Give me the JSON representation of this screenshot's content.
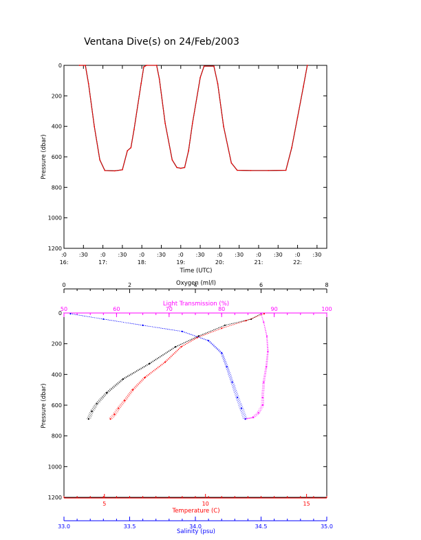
{
  "title": "Ventana Dive(s) on 24/Feb/2003",
  "colors": {
    "black": "#000000",
    "red": "#ff0000",
    "magenta": "#ff00ff",
    "blue": "#0000ff"
  },
  "chart_data": [
    {
      "type": "line",
      "xlabel": "Time (UTC)",
      "ylabel": "Pressure (dbar)",
      "ylim": [
        1200,
        0
      ],
      "yticks": [
        "0",
        "200",
        "400",
        "600",
        "800",
        "1000",
        "1200"
      ],
      "xlim_hours": [
        16.0,
        22.75
      ],
      "xticks_minor": [
        ":0",
        ":30",
        ":0",
        ":30",
        ":0",
        ":30",
        ":0",
        ":30",
        ":0",
        ":30",
        ":0",
        ":30",
        ":0",
        ":30"
      ],
      "xticks_major": [
        "16:",
        "17:",
        "18:",
        "19:",
        "20:",
        "21:",
        "22:"
      ],
      "series": [
        {
          "color": "#ff0000",
          "points": [
            [
              16.4,
              0
            ],
            [
              16.55,
              0
            ],
            [
              16.63,
              120
            ],
            [
              16.78,
              400
            ],
            [
              16.92,
              620
            ],
            [
              17.05,
              690
            ],
            [
              17.3,
              692
            ],
            [
              17.5,
              685
            ],
            [
              17.63,
              560
            ],
            [
              17.72,
              540
            ],
            [
              17.8,
              420
            ],
            [
              17.98,
              120
            ],
            [
              18.05,
              10
            ],
            [
              18.12,
              0
            ],
            [
              18.38,
              0
            ],
            [
              18.45,
              90
            ],
            [
              18.6,
              380
            ],
            [
              18.78,
              620
            ],
            [
              18.9,
              670
            ],
            [
              19.0,
              675
            ],
            [
              19.1,
              670
            ],
            [
              19.2,
              560
            ],
            [
              19.3,
              380
            ],
            [
              19.5,
              80
            ],
            [
              19.6,
              5
            ],
            [
              19.85,
              5
            ],
            [
              19.95,
              120
            ],
            [
              20.1,
              400
            ],
            [
              20.3,
              640
            ],
            [
              20.45,
              688
            ],
            [
              20.8,
              690
            ],
            [
              21.25,
              690
            ],
            [
              21.7,
              688
            ],
            [
              21.85,
              540
            ],
            [
              22.0,
              340
            ],
            [
              22.15,
              140
            ],
            [
              22.25,
              0
            ]
          ]
        }
      ]
    },
    {
      "type": "scatter",
      "ylabel": "Pressure (dbar)",
      "ylim": [
        1200,
        0
      ],
      "yticks": [
        "0",
        "200",
        "400",
        "600",
        "800",
        "1000",
        "1200"
      ],
      "axes": [
        {
          "label": "Oxygen (ml/l)",
          "color": "#000000",
          "range": [
            0,
            8
          ],
          "ticks": [
            "0",
            "2",
            "4",
            "6",
            "8"
          ],
          "position": "top"
        },
        {
          "label": "Light Transmission (%)",
          "color": "#ff00ff",
          "range": [
            50,
            100
          ],
          "ticks": [
            "50",
            "60",
            "70",
            "80",
            "90",
            "100"
          ],
          "position": "top"
        },
        {
          "label": "Temperature (C)",
          "color": "#ff0000",
          "range": [
            3.0,
            16.0
          ],
          "ticks": [
            "5",
            "10",
            "15"
          ],
          "position": "bottom"
        },
        {
          "label": "Salinity (psu)",
          "color": "#0000ff",
          "range": [
            33.0,
            35.0
          ],
          "ticks": [
            "33.0",
            "33.5",
            "34.0",
            "34.5",
            "35.0"
          ],
          "position": "bottom"
        }
      ],
      "series": [
        {
          "axis": 0,
          "color": "#000000",
          "points": [
            [
              6.0,
              5
            ],
            [
              5.7,
              40
            ],
            [
              4.9,
              80
            ],
            [
              4.1,
              150
            ],
            [
              3.4,
              220
            ],
            [
              2.6,
              330
            ],
            [
              1.8,
              430
            ],
            [
              1.3,
              520
            ],
            [
              1.0,
              590
            ],
            [
              0.85,
              640
            ],
            [
              0.75,
              690
            ]
          ]
        },
        {
          "axis": 1,
          "color": "#ff00ff",
          "points": [
            [
              87.5,
              5
            ],
            [
              88.0,
              60
            ],
            [
              88.6,
              150
            ],
            [
              88.8,
              250
            ],
            [
              88.5,
              350
            ],
            [
              88.0,
              450
            ],
            [
              87.8,
              550
            ],
            [
              87.8,
              600
            ],
            [
              87.0,
              650
            ],
            [
              86.0,
              680
            ],
            [
              84.5,
              690
            ]
          ]
        },
        {
          "axis": 2,
          "color": "#ff0000",
          "points": [
            [
              12.9,
              5
            ],
            [
              12.0,
              50
            ],
            [
              10.8,
              100
            ],
            [
              9.6,
              160
            ],
            [
              8.8,
              220
            ],
            [
              8.0,
              320
            ],
            [
              7.0,
              420
            ],
            [
              6.4,
              500
            ],
            [
              6.0,
              570
            ],
            [
              5.7,
              620
            ],
            [
              5.5,
              660
            ],
            [
              5.3,
              690
            ]
          ]
        },
        {
          "axis": 3,
          "color": "#0000ff",
          "points": [
            [
              33.05,
              5
            ],
            [
              33.3,
              40
            ],
            [
              33.6,
              80
            ],
            [
              33.9,
              120
            ],
            [
              34.1,
              180
            ],
            [
              34.2,
              260
            ],
            [
              34.24,
              350
            ],
            [
              34.28,
              450
            ],
            [
              34.32,
              550
            ],
            [
              34.35,
              620
            ],
            [
              34.38,
              690
            ]
          ]
        }
      ]
    }
  ]
}
